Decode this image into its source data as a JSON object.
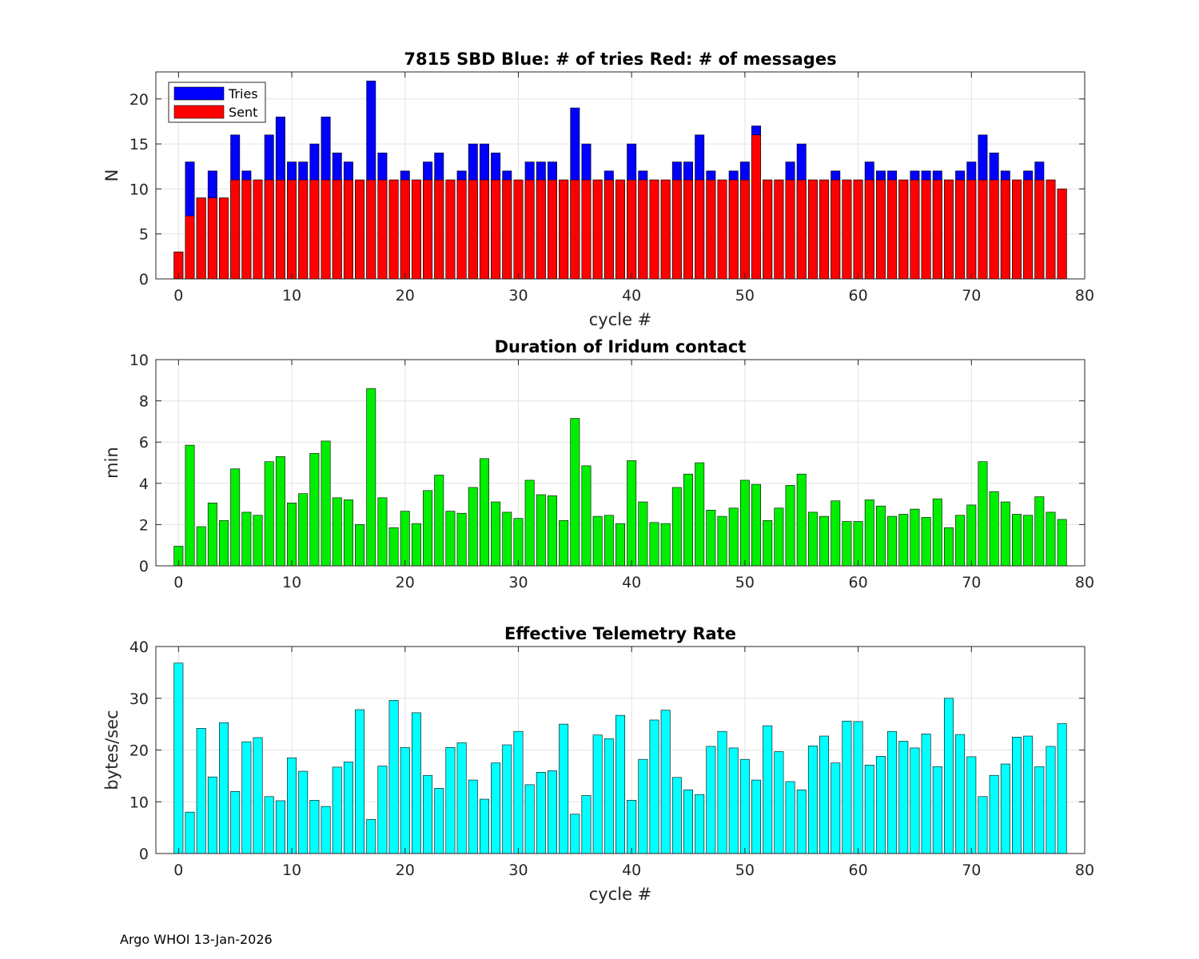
{
  "footer": "Argo WHOI 13-Jan-2026",
  "chart_data": [
    {
      "type": "bar",
      "title": "7815 SBD  Blue: # of tries   Red: # of messages",
      "xlabel": "cycle #",
      "ylabel": "N",
      "xlim": [
        -2,
        80
      ],
      "ylim": [
        0,
        23
      ],
      "xticks": [
        0,
        10,
        20,
        30,
        40,
        50,
        60,
        70,
        80
      ],
      "yticks": [
        0,
        5,
        10,
        15,
        20
      ],
      "grid": true,
      "legend": {
        "position": "top-left",
        "entries": [
          "Tries",
          "Sent"
        ]
      },
      "x": [
        -1,
        0,
        1,
        2,
        3,
        4,
        5,
        6,
        7,
        8,
        9,
        10,
        11,
        12,
        13,
        14,
        15,
        16,
        17,
        18,
        19,
        20,
        21,
        22,
        23,
        24,
        25,
        26,
        27,
        28,
        29,
        30,
        31,
        32,
        33,
        34,
        35,
        36,
        37,
        38,
        39,
        40,
        41,
        42,
        43,
        44,
        45,
        46,
        47,
        48,
        49,
        50,
        51,
        52,
        53,
        54,
        55,
        56,
        57,
        58,
        59,
        60,
        61,
        62,
        63,
        64,
        65,
        66,
        67,
        68,
        69,
        70,
        71,
        72,
        73,
        74,
        75,
        76,
        77,
        78
      ],
      "series": [
        {
          "name": "Tries",
          "color": "#0000ff",
          "values": [
            0,
            3,
            13,
            9,
            12,
            9,
            16,
            12,
            11,
            16,
            18,
            13,
            13,
            15,
            18,
            14,
            13,
            11,
            22,
            14,
            11,
            12,
            11,
            13,
            14,
            11,
            12,
            15,
            15,
            14,
            12,
            11,
            13,
            13,
            13,
            11,
            19,
            15,
            11,
            12,
            11,
            15,
            12,
            11,
            11,
            13,
            13,
            16,
            12,
            11,
            12,
            13,
            17,
            11,
            11,
            13,
            15,
            11,
            11,
            12,
            11,
            11,
            13,
            12,
            12,
            11,
            12,
            12,
            12,
            11,
            12,
            13,
            16,
            14,
            12,
            11,
            12,
            13,
            11,
            10
          ]
        },
        {
          "name": "Sent",
          "color": "#ff0000",
          "values": [
            0,
            3,
            7,
            9,
            9,
            9,
            11,
            11,
            11,
            11,
            11,
            11,
            11,
            11,
            11,
            11,
            11,
            11,
            11,
            11,
            11,
            11,
            11,
            11,
            11,
            11,
            11,
            11,
            11,
            11,
            11,
            11,
            11,
            11,
            11,
            11,
            11,
            11,
            11,
            11,
            11,
            11,
            11,
            11,
            11,
            11,
            11,
            11,
            11,
            11,
            11,
            11,
            16,
            11,
            11,
            11,
            11,
            11,
            11,
            11,
            11,
            11,
            11,
            11,
            11,
            11,
            11,
            11,
            11,
            11,
            11,
            11,
            11,
            11,
            11,
            11,
            11,
            11,
            11,
            10
          ]
        }
      ]
    },
    {
      "type": "bar",
      "title": "Duration of Iridum contact",
      "xlabel": "",
      "ylabel": "min",
      "xlim": [
        -2,
        80
      ],
      "ylim": [
        0,
        10
      ],
      "xticks": [
        0,
        10,
        20,
        30,
        40,
        50,
        60,
        70,
        80
      ],
      "yticks": [
        0,
        2,
        4,
        6,
        8,
        10
      ],
      "grid": true,
      "x": [
        -1,
        0,
        1,
        2,
        3,
        4,
        5,
        6,
        7,
        8,
        9,
        10,
        11,
        12,
        13,
        14,
        15,
        16,
        17,
        18,
        19,
        20,
        21,
        22,
        23,
        24,
        25,
        26,
        27,
        28,
        29,
        30,
        31,
        32,
        33,
        34,
        35,
        36,
        37,
        38,
        39,
        40,
        41,
        42,
        43,
        44,
        45,
        46,
        47,
        48,
        49,
        50,
        51,
        52,
        53,
        54,
        55,
        56,
        57,
        58,
        59,
        60,
        61,
        62,
        63,
        64,
        65,
        66,
        67,
        68,
        69,
        70,
        71,
        72,
        73,
        74,
        75,
        76,
        77,
        78
      ],
      "series": [
        {
          "name": "Duration",
          "color": "#00ee00",
          "values": [
            0,
            0.95,
            5.85,
            1.9,
            3.05,
            2.2,
            4.7,
            2.6,
            2.45,
            5.05,
            5.3,
            3.05,
            3.5,
            5.45,
            6.05,
            3.3,
            3.2,
            2.0,
            8.6,
            3.3,
            1.85,
            2.65,
            2.05,
            3.65,
            4.4,
            2.65,
            2.55,
            3.8,
            5.2,
            3.1,
            2.6,
            2.3,
            4.15,
            3.45,
            3.4,
            2.2,
            7.15,
            4.85,
            2.4,
            2.45,
            2.05,
            5.1,
            3.1,
            2.1,
            2.05,
            3.8,
            4.45,
            5.0,
            2.7,
            2.4,
            2.8,
            4.15,
            3.95,
            2.2,
            2.8,
            3.9,
            4.45,
            2.6,
            2.4,
            3.15,
            2.15,
            2.15,
            3.2,
            2.9,
            2.4,
            2.5,
            2.75,
            2.35,
            3.25,
            1.85,
            2.45,
            2.95,
            5.05,
            3.6,
            3.1,
            2.5,
            2.45,
            3.35,
            2.6,
            2.25
          ]
        }
      ]
    },
    {
      "type": "bar",
      "title": "Effective Telemetry Rate",
      "xlabel": "cycle #",
      "ylabel": "bytes/sec",
      "xlim": [
        -2,
        80
      ],
      "ylim": [
        0,
        40
      ],
      "xticks": [
        0,
        10,
        20,
        30,
        40,
        50,
        60,
        70,
        80
      ],
      "yticks": [
        0,
        10,
        20,
        30,
        40
      ],
      "grid": true,
      "x": [
        0,
        1,
        2,
        3,
        4,
        5,
        6,
        7,
        8,
        9,
        10,
        11,
        12,
        13,
        14,
        15,
        16,
        17,
        18,
        19,
        20,
        21,
        22,
        23,
        24,
        25,
        26,
        27,
        28,
        29,
        30,
        31,
        32,
        33,
        34,
        35,
        36,
        37,
        38,
        39,
        40,
        41,
        42,
        43,
        44,
        45,
        46,
        47,
        48,
        49,
        50,
        51,
        52,
        53,
        54,
        55,
        56,
        57,
        58,
        59,
        60,
        61,
        62,
        63,
        64,
        65,
        66,
        67,
        68,
        69,
        70,
        71,
        72,
        73,
        74,
        75,
        76,
        77,
        78
      ],
      "series": [
        {
          "name": "Rate",
          "color": "#00ffff",
          "values": [
            36.8,
            8.0,
            24.2,
            14.8,
            25.3,
            12.0,
            21.6,
            22.4,
            11.0,
            10.2,
            18.5,
            15.9,
            10.3,
            9.1,
            16.7,
            17.7,
            27.8,
            6.6,
            16.9,
            29.6,
            20.5,
            27.2,
            15.1,
            12.6,
            20.5,
            21.4,
            14.2,
            10.5,
            17.5,
            21.0,
            23.6,
            13.3,
            15.7,
            16.0,
            25.0,
            7.6,
            11.2,
            22.9,
            22.2,
            26.7,
            10.3,
            18.2,
            25.8,
            27.7,
            14.7,
            12.3,
            11.4,
            20.7,
            23.6,
            20.4,
            18.2,
            14.2,
            24.7,
            19.7,
            13.9,
            12.3,
            20.8,
            22.7,
            17.5,
            25.6,
            25.5,
            17.1,
            18.8,
            23.6,
            21.7,
            20.4,
            23.1,
            16.8,
            30.0,
            23.0,
            18.7,
            11.0,
            15.1,
            17.3,
            22.5,
            22.7,
            16.8,
            20.7,
            25.1
          ]
        }
      ]
    }
  ]
}
